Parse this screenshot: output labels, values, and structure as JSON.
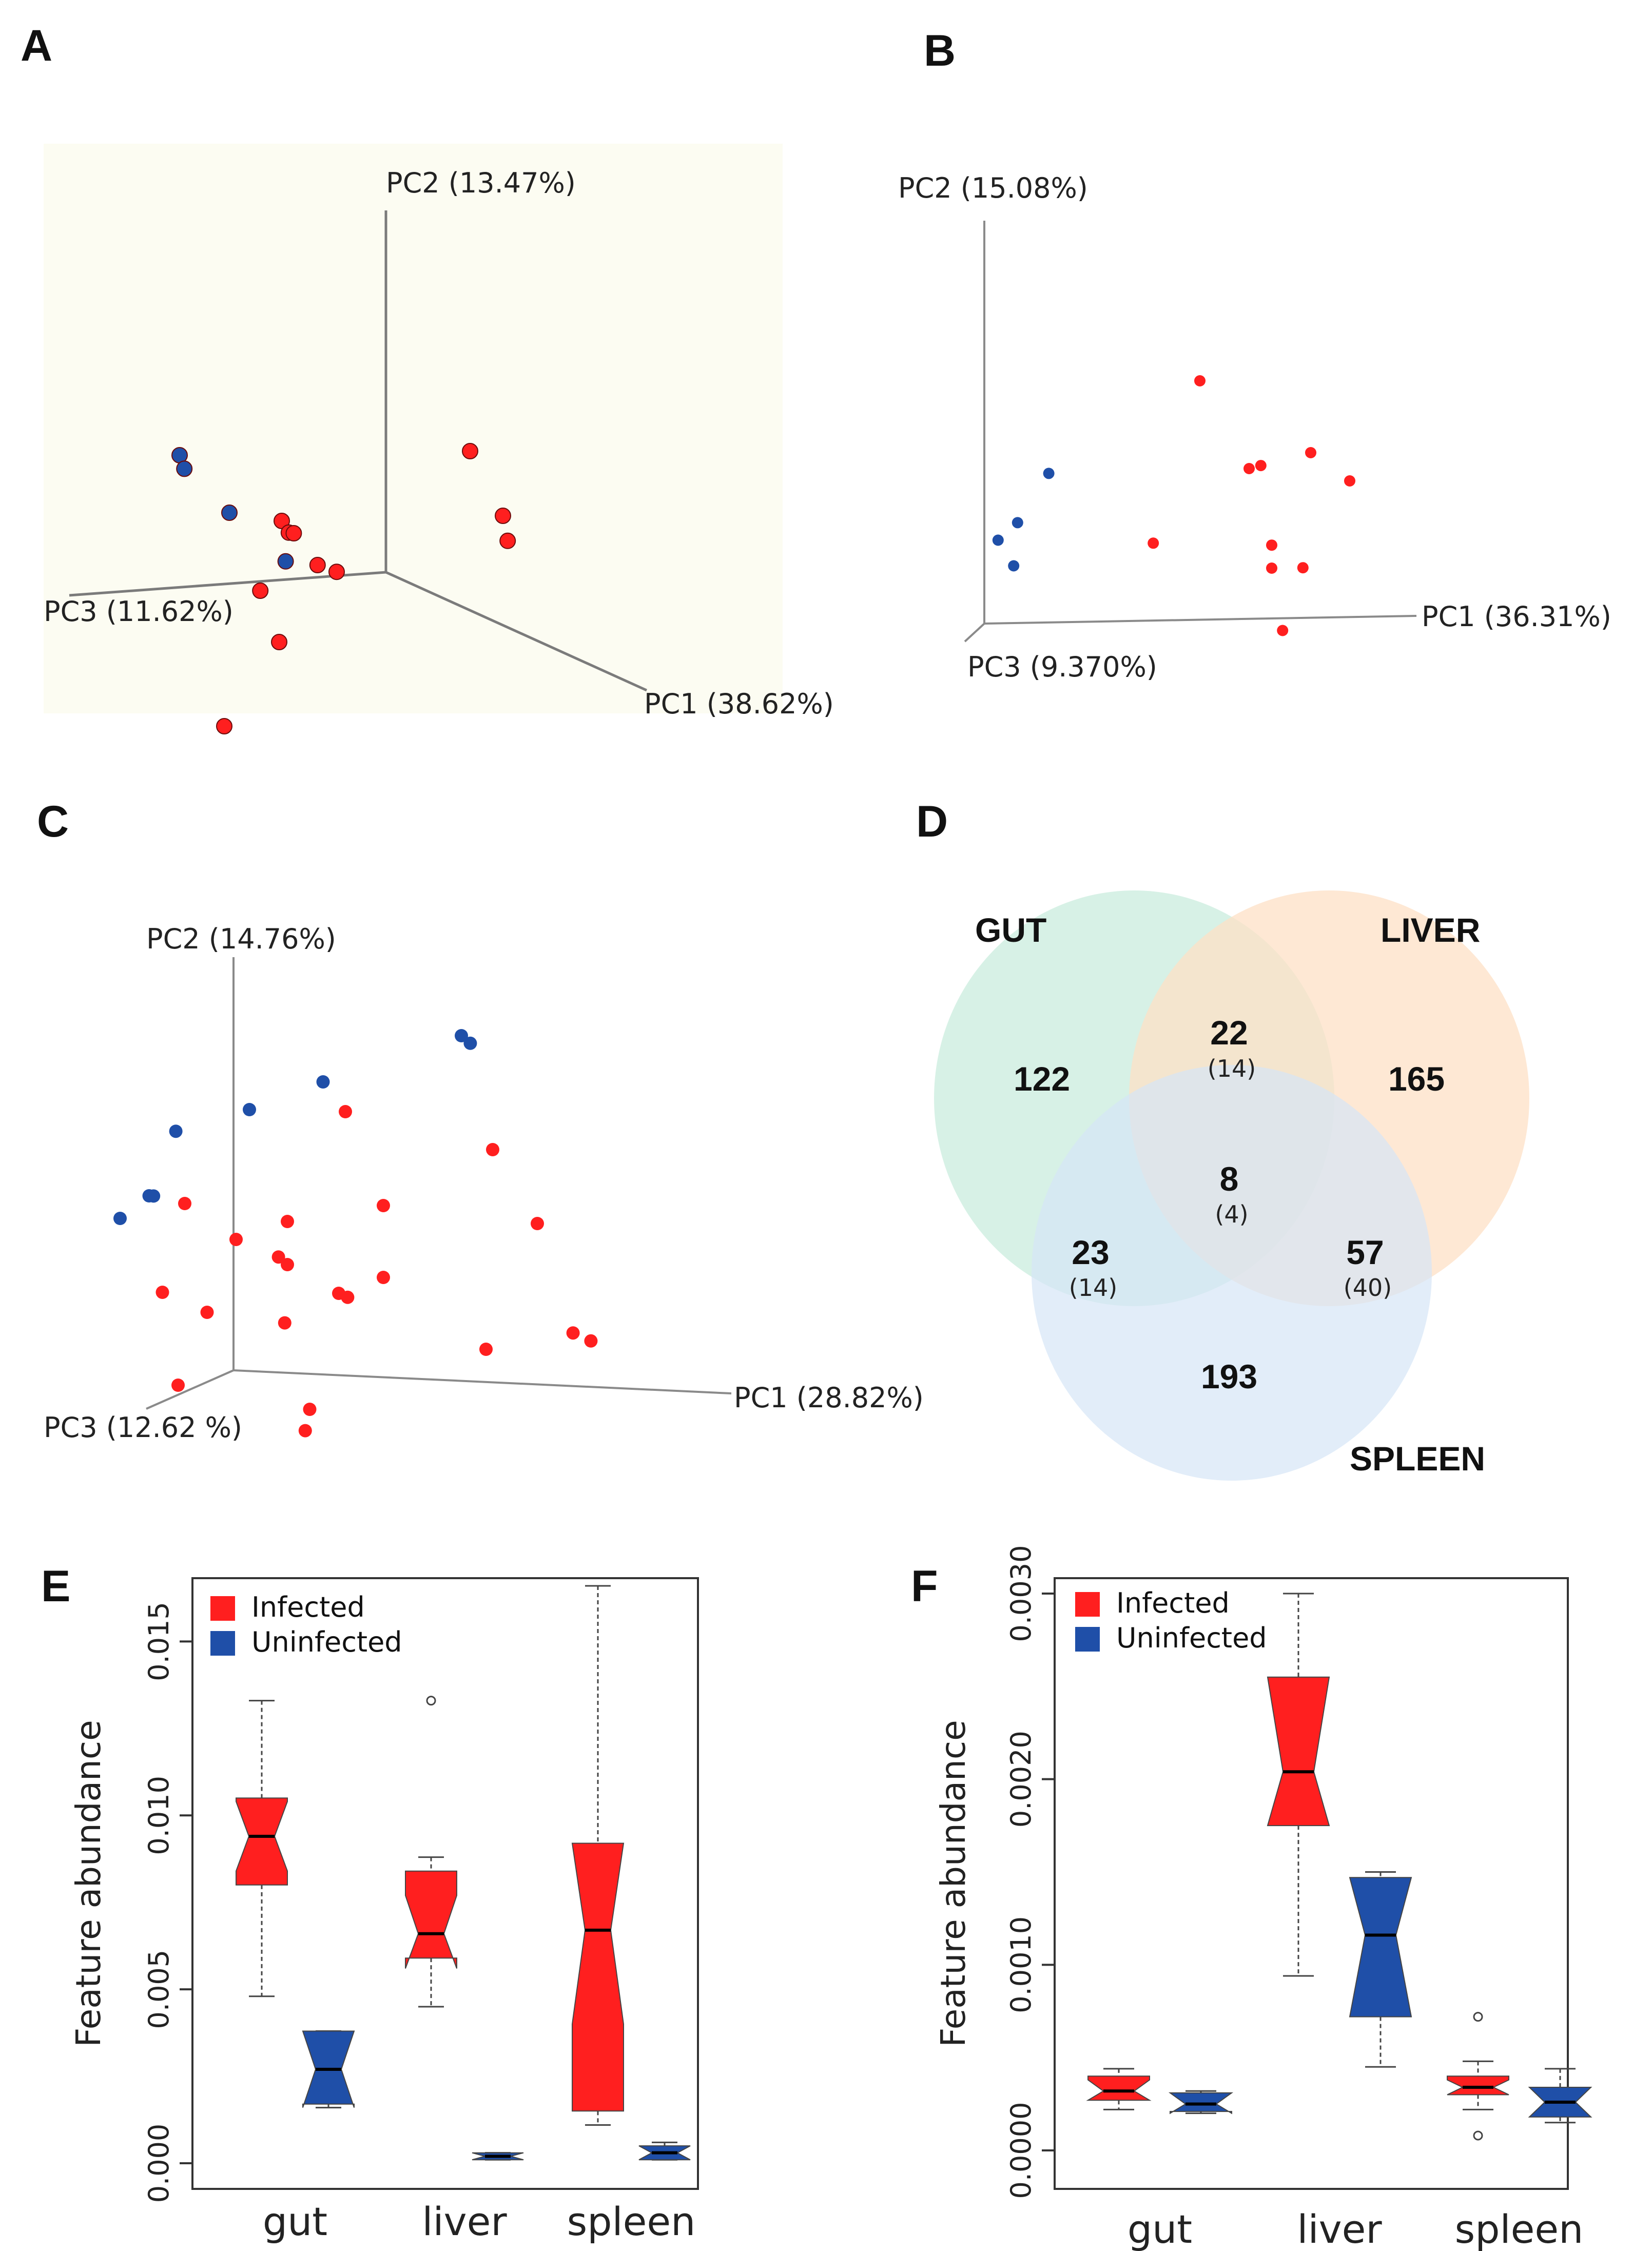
{
  "panels": {
    "A": "A",
    "B": "B",
    "C": "C",
    "D": "D",
    "E": "E",
    "F": "F"
  },
  "colors": {
    "infected": "#ff1f1f",
    "uninfected": "#1f4fa8",
    "gut_circle": "#cdeee0",
    "liver_circle": "#fde0c6",
    "spleen_circle": "#d6e6f6",
    "pcoa_a_background": "#fcfcf2"
  },
  "chart_data": [
    {
      "id": "A",
      "type": "scatter",
      "axes": [
        "PC1 (38.62%)",
        "PC2 (13.47%)",
        "PC3 (11.62%)"
      ],
      "series": [
        {
          "name": "",
          "color": "#ff1f1f",
          "points": [
            [
              0.6,
              0.65,
              0.2
            ],
            [
              0.8,
              0.5,
              0.25
            ],
            [
              0.82,
              0.42,
              0.25
            ],
            [
              0.35,
              0.35,
              0.65
            ],
            [
              0.38,
              0.32,
              0.65
            ],
            [
              0.34,
              0.3,
              0.6
            ],
            [
              0.38,
              0.2,
              0.55
            ],
            [
              0.4,
              0.18,
              0.5
            ],
            [
              0.32,
              0.1,
              0.7
            ],
            [
              0.4,
              -0.05,
              0.7
            ],
            [
              0.35,
              -0.35,
              0.85
            ]
          ]
        },
        {
          "name": "",
          "color": "#1f4fa8",
          "points": [
            [
              0.1,
              0.5,
              0.8
            ],
            [
              0.12,
              0.46,
              0.8
            ],
            [
              0.25,
              0.35,
              0.75
            ],
            [
              0.33,
              0.2,
              0.62
            ]
          ]
        }
      ]
    },
    {
      "id": "B",
      "type": "scatter",
      "axes": [
        "PC1 (36.31%)",
        "PC2 (15.08%)",
        "PC3 (9.370%)"
      ],
      "series": [
        {
          "name": "",
          "color": "#ff1f1f",
          "points": [
            [
              0.6,
              0.85,
              0.3
            ],
            [
              0.9,
              0.6,
              0.4
            ],
            [
              0.75,
              0.55,
              0.45
            ],
            [
              0.78,
              0.56,
              0.45
            ],
            [
              1.0,
              0.5,
              0.4
            ],
            [
              0.52,
              0.3,
              0.55
            ],
            [
              0.8,
              0.28,
              0.4
            ],
            [
              0.8,
              0.2,
              0.4
            ],
            [
              0.88,
              0.2,
              0.4
            ],
            [
              0.82,
              -0.02,
              0.35
            ]
          ]
        },
        {
          "name": "",
          "color": "#1f4fa8",
          "points": [
            [
              0.26,
              0.55,
              0.6
            ],
            [
              0.18,
              0.38,
              0.6
            ],
            [
              0.13,
              0.32,
              0.6
            ],
            [
              0.17,
              0.23,
              0.6
            ]
          ]
        }
      ]
    },
    {
      "id": "C",
      "type": "scatter",
      "axes": [
        "PC1 (28.82%)",
        "PC2 (14.76%)",
        "PC3 (12.62 %)"
      ],
      "series": [
        {
          "name": "",
          "color": "#ff1f1f",
          "points": [
            [
              0.4,
              0.8,
              0.5
            ],
            [
              0.7,
              0.7,
              0.4
            ],
            [
              0.1,
              0.55,
              0.7
            ],
            [
              0.3,
              0.5,
              0.6
            ],
            [
              0.5,
              0.55,
              0.55
            ],
            [
              0.2,
              0.45,
              0.65
            ],
            [
              0.28,
              0.4,
              0.6
            ],
            [
              0.3,
              0.38,
              0.6
            ],
            [
              0.4,
              0.3,
              0.55
            ],
            [
              0.42,
              0.29,
              0.55
            ],
            [
              0.5,
              0.35,
              0.55
            ],
            [
              0.8,
              0.5,
              0.4
            ],
            [
              0.05,
              0.3,
              0.7
            ],
            [
              0.15,
              0.25,
              0.7
            ],
            [
              0.3,
              0.22,
              0.62
            ],
            [
              0.88,
              0.2,
              0.4
            ],
            [
              0.92,
              0.18,
              0.4
            ],
            [
              0.7,
              0.15,
              0.45
            ],
            [
              0.1,
              0.05,
              0.75
            ],
            [
              0.35,
              -0.02,
              0.6
            ],
            [
              0.34,
              -0.08,
              0.6
            ]
          ]
        },
        {
          "name": "",
          "color": "#1f4fa8",
          "points": [
            [
              0.6,
              1.0,
              0.3
            ],
            [
              0.62,
              0.98,
              0.3
            ],
            [
              0.35,
              0.88,
              0.5
            ],
            [
              0.2,
              0.8,
              0.55
            ],
            [
              0.08,
              0.75,
              0.7
            ],
            [
              0.05,
              0.58,
              0.8
            ],
            [
              0.06,
              0.58,
              0.8
            ],
            [
              0.0,
              0.52,
              0.85
            ]
          ]
        }
      ]
    },
    {
      "id": "D",
      "type": "venn",
      "sets": [
        "GUT",
        "LIVER",
        "SPLEEN"
      ],
      "regions": [
        {
          "sets": [
            "GUT"
          ],
          "value": "122"
        },
        {
          "sets": [
            "LIVER"
          ],
          "value": "165"
        },
        {
          "sets": [
            "SPLEEN"
          ],
          "value": "193"
        },
        {
          "sets": [
            "GUT",
            "LIVER"
          ],
          "value": "22",
          "sub": "(14)"
        },
        {
          "sets": [
            "GUT",
            "SPLEEN"
          ],
          "value": "23",
          "sub": "(14)"
        },
        {
          "sets": [
            "LIVER",
            "SPLEEN"
          ],
          "value": "57",
          "sub": "(40)"
        },
        {
          "sets": [
            "GUT",
            "LIVER",
            "SPLEEN"
          ],
          "value": "8",
          "sub": "(4)"
        }
      ]
    },
    {
      "id": "E",
      "type": "box",
      "ylabel": "Feature abundance",
      "ylim": [
        0.0,
        0.0166
      ],
      "yticks": [
        "0.000",
        "0.005",
        "0.010",
        "0.015"
      ],
      "ytick_values": [
        0.0,
        0.005,
        0.01,
        0.015
      ],
      "categories": [
        "gut",
        "liver",
        "spleen"
      ],
      "legend": [
        "Infected",
        "Uninfected"
      ],
      "legend_position": "top-left",
      "boxes": [
        {
          "category": "gut",
          "group": "Infected",
          "min": 0.0048,
          "q1": 0.008,
          "median": 0.0094,
          "q3": 0.0105,
          "max": 0.0133,
          "notch_low": 0.0084,
          "notch_high": 0.0104,
          "outliers": []
        },
        {
          "category": "gut",
          "group": "Uninfected",
          "min": 0.0016,
          "q1": 0.0017,
          "median": 0.0027,
          "q3": 0.0038,
          "max": 0.0038,
          "notch_low": 0.0016,
          "notch_high": 0.0038,
          "outliers": []
        },
        {
          "category": "liver",
          "group": "Infected",
          "min": 0.0045,
          "q1": 0.0059,
          "median": 0.0066,
          "q3": 0.0084,
          "max": 0.0088,
          "notch_low": 0.0056,
          "notch_high": 0.0077,
          "outliers": [
            0.0133
          ]
        },
        {
          "category": "liver",
          "group": "Uninfected",
          "min": 0.0001,
          "q1": 0.0001,
          "median": 0.0002,
          "q3": 0.0003,
          "max": 0.0003,
          "notch_low": 0.0001,
          "notch_high": 0.0003,
          "outliers": []
        },
        {
          "category": "spleen",
          "group": "Infected",
          "min": 0.0011,
          "q1": 0.0015,
          "median": 0.0067,
          "q3": 0.0092,
          "max": 0.0166,
          "notch_low": 0.004,
          "notch_high": 0.0092,
          "outliers": []
        },
        {
          "category": "spleen",
          "group": "Uninfected",
          "min": 0.0001,
          "q1": 0.0001,
          "median": 0.0003,
          "q3": 0.0005,
          "max": 0.0006,
          "notch_low": 0.0001,
          "notch_high": 0.0005,
          "outliers": []
        }
      ]
    },
    {
      "id": "F",
      "type": "box",
      "ylabel": "Feature abundance",
      "ylim": [
        0.0,
        0.003
      ],
      "yticks": [
        "0.0000",
        "0.0010",
        "0.0020",
        "0.0030"
      ],
      "ytick_values": [
        0.0,
        0.001,
        0.002,
        0.003
      ],
      "categories": [
        "gut",
        "liver",
        "spleen"
      ],
      "legend": [
        "Infected",
        "Uninfected"
      ],
      "legend_position": "top-left",
      "boxes": [
        {
          "category": "gut",
          "group": "Infected",
          "min": 0.00022,
          "q1": 0.00027,
          "median": 0.00032,
          "q3": 0.0004,
          "max": 0.00044,
          "notch_low": 0.00027,
          "notch_high": 0.00038,
          "outliers": []
        },
        {
          "category": "gut",
          "group": "Uninfected",
          "min": 0.0002,
          "q1": 0.00021,
          "median": 0.00025,
          "q3": 0.00031,
          "max": 0.00032,
          "notch_low": 0.0002,
          "notch_high": 0.00031,
          "outliers": []
        },
        {
          "category": "liver",
          "group": "Infected",
          "min": 0.00094,
          "q1": 0.00175,
          "median": 0.00204,
          "q3": 0.00255,
          "max": 0.003,
          "notch_low": 0.00175,
          "notch_high": 0.00255,
          "outliers": []
        },
        {
          "category": "liver",
          "group": "Uninfected",
          "min": 0.00045,
          "q1": 0.00072,
          "median": 0.00116,
          "q3": 0.00147,
          "max": 0.0015,
          "notch_low": 0.00072,
          "notch_high": 0.00147,
          "outliers": []
        },
        {
          "category": "spleen",
          "group": "Infected",
          "min": 0.00022,
          "q1": 0.0003,
          "median": 0.00034,
          "q3": 0.0004,
          "max": 0.00048,
          "notch_low": 0.0003,
          "notch_high": 0.00038,
          "outliers": [
            0.00072,
            8e-05
          ]
        },
        {
          "category": "spleen",
          "group": "Uninfected",
          "min": 0.00015,
          "q1": 0.00018,
          "median": 0.00026,
          "q3": 0.00034,
          "max": 0.00044,
          "notch_low": 0.00018,
          "notch_high": 0.00034,
          "outliers": []
        }
      ]
    }
  ]
}
